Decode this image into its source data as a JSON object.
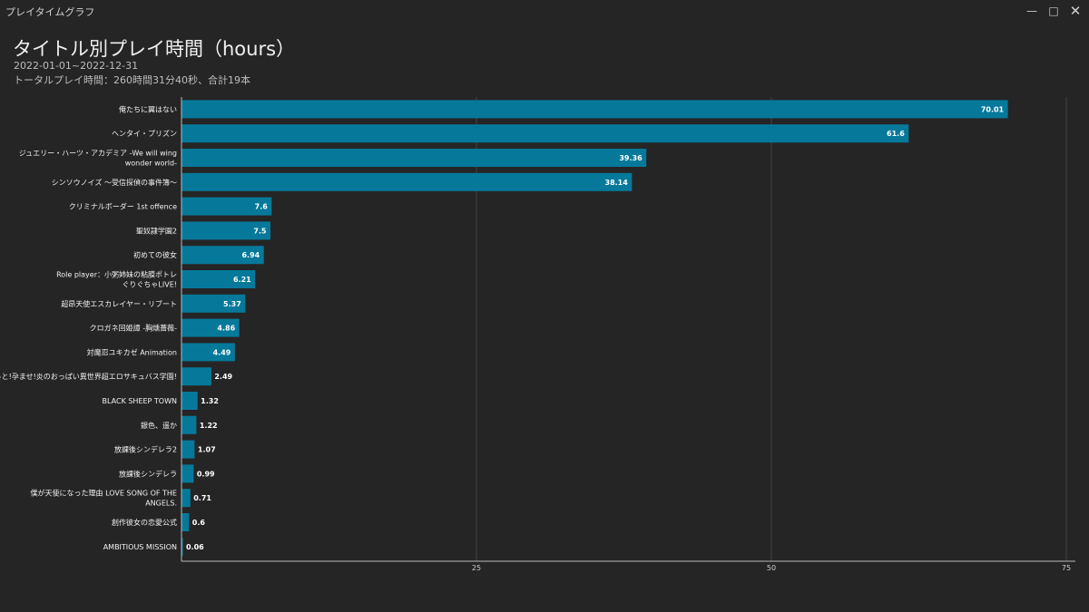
{
  "window": {
    "title": "プレイタイムグラフ",
    "minimize_icon": "minimize-icon",
    "maximize_icon": "maximize-icon",
    "close_icon": "close-icon"
  },
  "header": {
    "title": "タイトル別プレイ時間（hours）",
    "period": "2022-01-01~2022-12-31",
    "total": "トータルプレイ時間：260時間31分40秒、合計19本"
  },
  "colors": {
    "background": "#252525",
    "bar": "#06799a",
    "grid": "#444444",
    "axis": "#bbbbbb"
  },
  "chart_data": {
    "type": "bar",
    "orientation": "horizontal",
    "title": "タイトル別プレイ時間（hours）",
    "xlim": [
      0,
      75
    ],
    "x_ticks": [
      25,
      50,
      75
    ],
    "grid": true,
    "categories": [
      "俺たちに翼はない",
      "ヘンタイ・プリズン",
      "ジュエリー・ハーツ・アカデミア -We will wing wonder world-",
      "シンソウノイズ ～受信探偵の事件簿～",
      "クリミナルボーダー 1st offence",
      "聖奴隷学園2",
      "初めての彼女",
      "Role player：小粥姉妹の粘膜ポトレ ぐりぐちゃLIVE!",
      "超昂天使エスカレイヤー・リブート",
      "クロガネ回姫譚 -胸燻薔薇-",
      "対魔忍ユキカゼ Animation",
      "もっと!孕ませ!炎のおっぱい異世界超エロサキュバス学園!",
      "BLACK SHEEP TOWN",
      "銀色、遥か",
      "放課後シンデレラ2",
      "放課後シンデレラ",
      "僕が天使になった理由 LOVE SONG OF THE ANGELS.",
      "創作彼女の恋愛公式",
      "AMBITIOUS MISSION"
    ],
    "values": [
      70.01,
      61.6,
      39.36,
      38.14,
      7.6,
      7.5,
      6.94,
      6.21,
      5.37,
      4.86,
      4.49,
      2.49,
      1.32,
      1.22,
      1.07,
      0.99,
      0.71,
      0.6,
      0.06
    ]
  }
}
